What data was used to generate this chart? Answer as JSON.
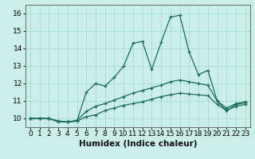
{
  "title": "",
  "xlabel": "Humidex (Indice chaleur)",
  "bg_color": "#cceee8",
  "line_color": "#1a6b5a",
  "grid_color": "#aaddda",
  "x_values": [
    0,
    1,
    2,
    3,
    4,
    5,
    6,
    7,
    8,
    9,
    10,
    11,
    12,
    13,
    14,
    15,
    16,
    17,
    18,
    19,
    20,
    21,
    22,
    23
  ],
  "line_max": [
    10.0,
    10.0,
    10.0,
    9.8,
    9.8,
    9.85,
    11.5,
    12.0,
    11.85,
    12.35,
    13.0,
    14.3,
    14.4,
    12.8,
    14.35,
    15.8,
    15.9,
    13.8,
    12.5,
    12.75,
    11.0,
    10.45,
    10.8,
    10.9
  ],
  "line_mean": [
    10.0,
    10.0,
    10.0,
    9.85,
    9.8,
    9.9,
    10.4,
    10.7,
    10.85,
    11.05,
    11.25,
    11.45,
    11.6,
    11.75,
    11.9,
    12.1,
    12.2,
    12.1,
    12.0,
    11.9,
    11.0,
    10.6,
    10.85,
    10.95
  ],
  "line_min": [
    10.0,
    10.0,
    10.0,
    9.85,
    9.8,
    9.85,
    10.1,
    10.2,
    10.45,
    10.6,
    10.75,
    10.85,
    10.95,
    11.1,
    11.25,
    11.35,
    11.45,
    11.4,
    11.35,
    11.3,
    10.8,
    10.45,
    10.7,
    10.8
  ],
  "xlim": [
    -0.5,
    23.5
  ],
  "ylim": [
    9.5,
    16.5
  ],
  "yticks": [
    10,
    11,
    12,
    13,
    14,
    15,
    16
  ],
  "xticks": [
    0,
    1,
    2,
    3,
    4,
    5,
    6,
    7,
    8,
    9,
    10,
    11,
    12,
    13,
    14,
    15,
    16,
    17,
    18,
    19,
    20,
    21,
    22,
    23
  ],
  "tick_fontsize": 6.5,
  "xlabel_fontsize": 7.5
}
